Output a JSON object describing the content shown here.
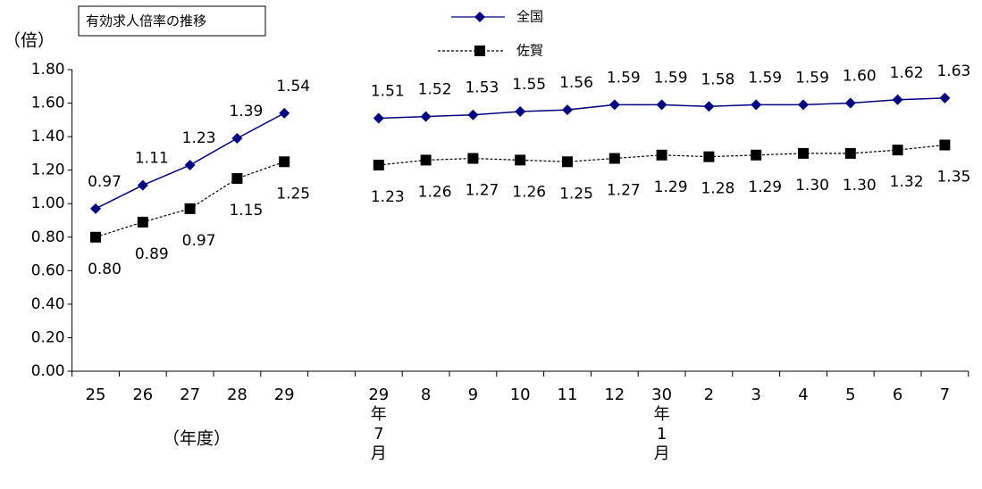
{
  "chart_data": {
    "type": "line",
    "title": "有効求人倍率の推移",
    "y_label": "（倍）",
    "x_group_label": "（年度）",
    "categories": [
      "25",
      "26",
      "27",
      "28",
      "29",
      null,
      "29\n年\n7\n月",
      "8",
      "9",
      "10",
      "11",
      "12",
      "30\n年\n1\n月",
      "2",
      "3",
      "4",
      "5",
      "6",
      "7"
    ],
    "series": [
      {
        "name": "全国",
        "color": "#000080",
        "marker": "diamond",
        "line_style": "solid",
        "label_position": "above",
        "values": [
          0.97,
          1.11,
          1.23,
          1.39,
          1.54,
          null,
          1.51,
          1.52,
          1.53,
          1.55,
          1.56,
          1.59,
          1.59,
          1.58,
          1.59,
          1.59,
          1.6,
          1.62,
          1.63
        ],
        "value_labels": [
          "0.97",
          "1.11",
          "1.23",
          "1.39",
          "1.54",
          null,
          "1.51",
          "1.52",
          "1.53",
          "1.55",
          "1.56",
          "1.59",
          "1.59",
          "1.58",
          "1.59",
          "1.59",
          "1.60",
          "1.62",
          "1.63"
        ]
      },
      {
        "name": "佐賀",
        "color": "#000000",
        "marker": "square",
        "line_style": "dashed",
        "label_position": "below",
        "values": [
          0.8,
          0.89,
          0.97,
          1.15,
          1.25,
          null,
          1.23,
          1.26,
          1.27,
          1.26,
          1.25,
          1.27,
          1.29,
          1.28,
          1.29,
          1.3,
          1.3,
          1.32,
          1.35
        ],
        "value_labels": [
          "0.80",
          "0.89",
          "0.97",
          "1.15",
          "1.25",
          null,
          "1.23",
          "1.26",
          "1.27",
          "1.26",
          "1.25",
          "1.27",
          "1.29",
          "1.28",
          "1.29",
          "1.30",
          "1.30",
          "1.32",
          "1.35"
        ]
      }
    ],
    "ylim": [
      0,
      1.8
    ],
    "yticks": [
      {
        "value": 0,
        "label": "0.00"
      },
      {
        "value": 0.2,
        "label": "0.20"
      },
      {
        "value": 0.4,
        "label": "0.40"
      },
      {
        "value": 0.6,
        "label": "0.60"
      },
      {
        "value": 0.8,
        "label": "0.80"
      },
      {
        "value": 1,
        "label": "1.00"
      },
      {
        "value": 1.2,
        "label": "1.20"
      },
      {
        "value": 1.4,
        "label": "1.40"
      },
      {
        "value": 1.6,
        "label": "1.60"
      },
      {
        "value": 1.8,
        "label": "1.80"
      }
    ],
    "grid": false,
    "legend": "top"
  }
}
